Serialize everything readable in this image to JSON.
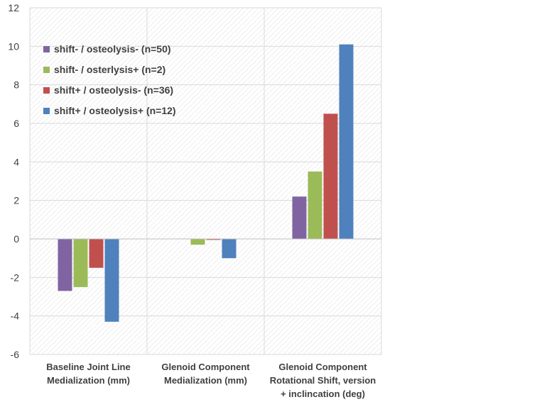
{
  "chart_data": {
    "type": "bar",
    "categories": [
      [
        "Baseline Joint Line",
        "Medialization (mm)"
      ],
      [
        "Glenoid Component",
        "Medialization (mm)"
      ],
      [
        "Glenoid Component",
        "Rotational Shift, version",
        "+ inclincation (deg)"
      ]
    ],
    "series": [
      {
        "name": "shift- / osteolysis- (n=50)",
        "color": "#8064A2",
        "values": [
          -2.7,
          0.02,
          2.2
        ]
      },
      {
        "name": "shift- / osterlysis+ (n=2)",
        "color": "#9BBB59",
        "values": [
          -2.5,
          -0.3,
          3.5
        ]
      },
      {
        "name": "shift+ / osteolysis- (n=36)",
        "color": "#C0504D",
        "values": [
          -1.5,
          -0.05,
          6.5
        ]
      },
      {
        "name": "shift+ / osteolysis+ (n=12)",
        "color": "#4F81BD",
        "values": [
          -4.3,
          -1.0,
          10.1
        ]
      }
    ],
    "ylim": [
      -6,
      12
    ],
    "yticks": [
      -6,
      -4,
      -2,
      0,
      2,
      4,
      6,
      8,
      10,
      12
    ],
    "grid": true,
    "legend_position": "top-left",
    "title": "",
    "xlabel": "",
    "ylabel": ""
  }
}
